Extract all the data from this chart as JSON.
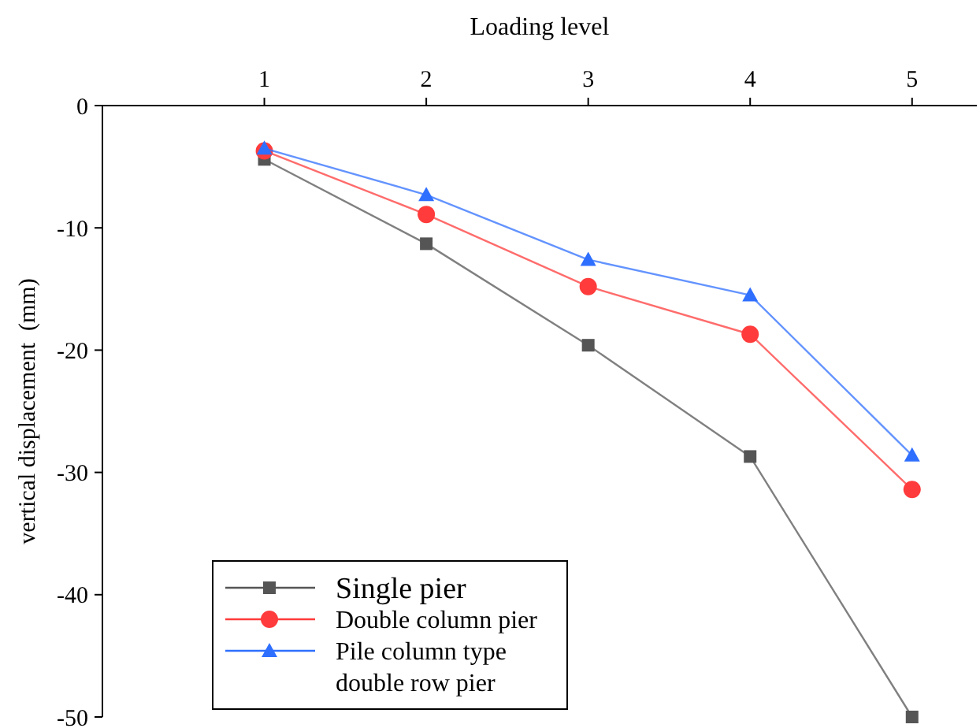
{
  "chart_data": {
    "type": "line",
    "xlabel": "Loading level",
    "ylabel": "vertical displacement  (mm)",
    "x": [
      1,
      2,
      3,
      4,
      5
    ],
    "xlim": [
      0,
      5.4
    ],
    "xticks": [
      1,
      2,
      3,
      4,
      5
    ],
    "ylim": [
      -50,
      0
    ],
    "yticks": [
      0,
      -10,
      -20,
      -30,
      -40,
      -50
    ],
    "grid": false,
    "legend": "bottom left",
    "series": [
      {
        "name": "Single pier",
        "color": "#555555",
        "marker": "square",
        "values": [
          -4.4,
          -11.3,
          -19.6,
          -28.7,
          -50
        ]
      },
      {
        "name": "Double column pier",
        "color": "#ff3b3b",
        "marker": "circle",
        "values": [
          -3.7,
          -8.9,
          -14.8,
          -18.7,
          -31.4
        ]
      },
      {
        "name": "Pile column type double row pier",
        "color": "#2f6fff",
        "marker": "triangle",
        "values": [
          -3.5,
          -7.3,
          -12.6,
          -15.5,
          -28.6
        ]
      }
    ]
  }
}
